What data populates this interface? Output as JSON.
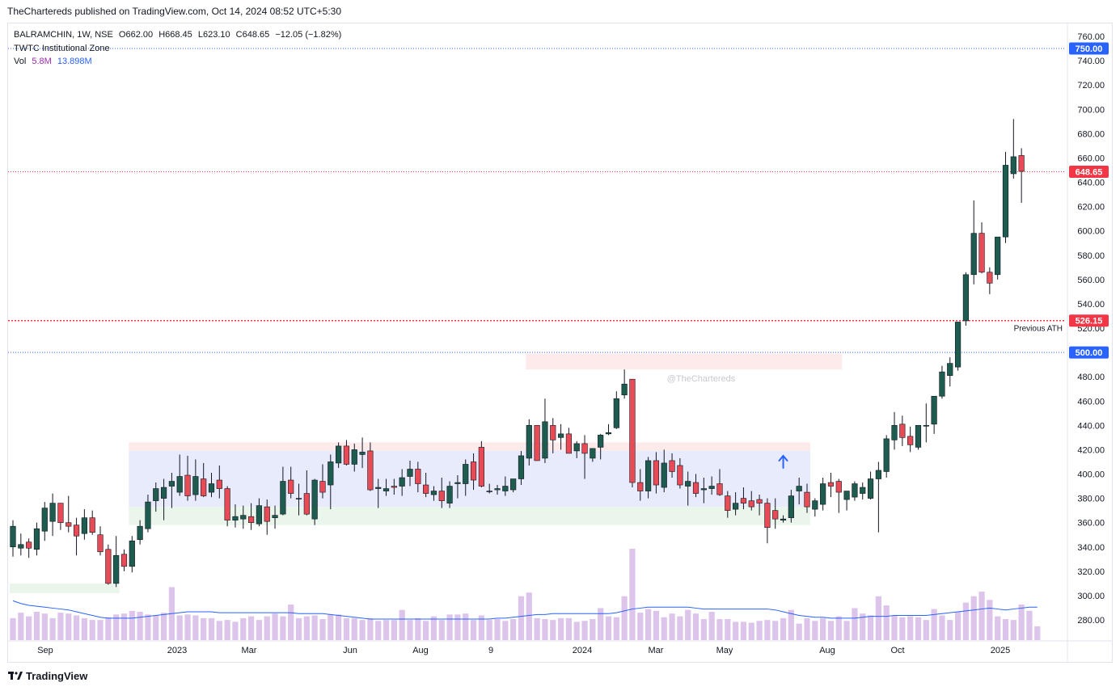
{
  "header": {
    "publisher_line": "TheChartereds published on TradingView.com, Oct 14, 2024 08:52 UTC+5:30"
  },
  "legend": {
    "symbol": "BALRAMCHIN, 1W, NSE",
    "open": "O662.00",
    "high": "H668.45",
    "low": "L623.10",
    "close": "C648.65",
    "change": "−12.05 (−1.82%)",
    "indicator": "TWTC Institutional Zone",
    "vol_label": "Vol",
    "vol_value": "5.8M",
    "vol_ma": "13.898M"
  },
  "footer": {
    "brand": "TradingView"
  },
  "colors": {
    "up": "#26a69a",
    "down": "#ef5350",
    "up_candle": "#1d5c4f",
    "down_candle": "#e84b56",
    "volume": "#dcc4ea",
    "vol_ma": "#2962ff",
    "zone_blue": "#e3e8fb",
    "zone_red": "#fde6e6",
    "zone_green": "#e6f4e8",
    "price_label_blue": "#2962ff",
    "price_label_red": "#f23645"
  },
  "chart_data": {
    "type": "candlestick",
    "y_axis": {
      "min": 270,
      "max": 765,
      "ticks": [
        280,
        300,
        320,
        340,
        360,
        380,
        400,
        420,
        440,
        460,
        480,
        500,
        520,
        540,
        560,
        580,
        600,
        620,
        640,
        660,
        680,
        700,
        720,
        740,
        760
      ]
    },
    "x_axis_labels": [
      "Sep",
      "2023",
      "Mar",
      "Jun",
      "Aug",
      "9",
      "2024",
      "Mar",
      "May",
      "Aug",
      "Oct",
      "2025"
    ],
    "price_labels": [
      {
        "value": 750.0,
        "text": "750.00",
        "color": "#2962ff",
        "line": "dotted-blue"
      },
      {
        "value": 648.65,
        "text": "648.65",
        "color": "#f23645",
        "line": "dotted-red"
      },
      {
        "value": 526.15,
        "text": "526.15",
        "color": "#f23645",
        "line": "dotted-red-thick",
        "annotation": "Previous ATH"
      },
      {
        "value": 500.0,
        "text": "500.00",
        "color": "#2962ff",
        "line": "dotted-blue"
      }
    ],
    "watermark": "@TheChartereds",
    "zones": [
      {
        "kind": "red",
        "from_index": 15,
        "to_index": 100,
        "low": 419,
        "high": 426
      },
      {
        "kind": "blue",
        "from_index": 15,
        "to_index": 100,
        "low": 373,
        "high": 419
      },
      {
        "kind": "green",
        "from_index": 15,
        "to_index": 100,
        "low": 358,
        "high": 373
      },
      {
        "kind": "red",
        "from_index": 65,
        "to_index": 104,
        "low": 486,
        "high": 499
      },
      {
        "kind": "green",
        "from_index": 0,
        "to_index": 13,
        "low": 302,
        "high": 310
      }
    ],
    "arrow": {
      "index": 97,
      "value": 411,
      "direction": "up",
      "color": "#2962ff"
    },
    "candles": [
      {
        "o": 340,
        "h": 362,
        "l": 332,
        "c": 357
      },
      {
        "o": 339,
        "h": 351,
        "l": 333,
        "c": 342
      },
      {
        "o": 344,
        "h": 347,
        "l": 331,
        "c": 339
      },
      {
        "o": 338,
        "h": 360,
        "l": 333,
        "c": 355
      },
      {
        "o": 353,
        "h": 377,
        "l": 345,
        "c": 372
      },
      {
        "o": 361,
        "h": 384,
        "l": 349,
        "c": 376
      },
      {
        "o": 376,
        "h": 376,
        "l": 354,
        "c": 360
      },
      {
        "o": 360,
        "h": 382,
        "l": 352,
        "c": 357
      },
      {
        "o": 358,
        "h": 364,
        "l": 333,
        "c": 349
      },
      {
        "o": 351,
        "h": 371,
        "l": 346,
        "c": 364
      },
      {
        "o": 364,
        "h": 370,
        "l": 350,
        "c": 352
      },
      {
        "o": 350,
        "h": 357,
        "l": 333,
        "c": 336
      },
      {
        "o": 338,
        "h": 342,
        "l": 309,
        "c": 310
      },
      {
        "o": 310,
        "h": 349,
        "l": 307,
        "c": 333
      },
      {
        "o": 334,
        "h": 338,
        "l": 320,
        "c": 324
      },
      {
        "o": 324,
        "h": 349,
        "l": 319,
        "c": 345
      },
      {
        "o": 346,
        "h": 362,
        "l": 342,
        "c": 357
      },
      {
        "o": 355,
        "h": 383,
        "l": 352,
        "c": 377
      },
      {
        "o": 378,
        "h": 393,
        "l": 369,
        "c": 388
      },
      {
        "o": 380,
        "h": 396,
        "l": 362,
        "c": 389
      },
      {
        "o": 390,
        "h": 401,
        "l": 372,
        "c": 394
      },
      {
        "o": 385,
        "h": 416,
        "l": 382,
        "c": 398
      },
      {
        "o": 399,
        "h": 415,
        "l": 378,
        "c": 382
      },
      {
        "o": 383,
        "h": 412,
        "l": 378,
        "c": 398
      },
      {
        "o": 396,
        "h": 409,
        "l": 381,
        "c": 382
      },
      {
        "o": 385,
        "h": 401,
        "l": 381,
        "c": 392
      },
      {
        "o": 395,
        "h": 407,
        "l": 380,
        "c": 388
      },
      {
        "o": 388,
        "h": 390,
        "l": 357,
        "c": 362
      },
      {
        "o": 362,
        "h": 375,
        "l": 356,
        "c": 365
      },
      {
        "o": 363,
        "h": 374,
        "l": 355,
        "c": 366
      },
      {
        "o": 365,
        "h": 376,
        "l": 354,
        "c": 360
      },
      {
        "o": 359,
        "h": 380,
        "l": 357,
        "c": 374
      },
      {
        "o": 373,
        "h": 379,
        "l": 350,
        "c": 361
      },
      {
        "o": 364,
        "h": 374,
        "l": 355,
        "c": 366
      },
      {
        "o": 367,
        "h": 406,
        "l": 366,
        "c": 394
      },
      {
        "o": 395,
        "h": 406,
        "l": 380,
        "c": 384
      },
      {
        "o": 380,
        "h": 392,
        "l": 366,
        "c": 380
      },
      {
        "o": 384,
        "h": 403,
        "l": 366,
        "c": 367
      },
      {
        "o": 363,
        "h": 396,
        "l": 358,
        "c": 395
      },
      {
        "o": 394,
        "h": 408,
        "l": 380,
        "c": 385
      },
      {
        "o": 391,
        "h": 416,
        "l": 371,
        "c": 410
      },
      {
        "o": 409,
        "h": 426,
        "l": 405,
        "c": 423
      },
      {
        "o": 423,
        "h": 428,
        "l": 407,
        "c": 408
      },
      {
        "o": 408,
        "h": 425,
        "l": 402,
        "c": 420
      },
      {
        "o": 416,
        "h": 430,
        "l": 405,
        "c": 418
      },
      {
        "o": 419,
        "h": 426,
        "l": 386,
        "c": 387
      },
      {
        "o": 388,
        "h": 396,
        "l": 372,
        "c": 389
      },
      {
        "o": 386,
        "h": 396,
        "l": 382,
        "c": 388
      },
      {
        "o": 390,
        "h": 396,
        "l": 383,
        "c": 389
      },
      {
        "o": 390,
        "h": 404,
        "l": 382,
        "c": 397
      },
      {
        "o": 398,
        "h": 411,
        "l": 390,
        "c": 404
      },
      {
        "o": 404,
        "h": 410,
        "l": 385,
        "c": 392
      },
      {
        "o": 391,
        "h": 401,
        "l": 381,
        "c": 384
      },
      {
        "o": 383,
        "h": 390,
        "l": 378,
        "c": 386
      },
      {
        "o": 386,
        "h": 397,
        "l": 372,
        "c": 378
      },
      {
        "o": 376,
        "h": 394,
        "l": 372,
        "c": 390
      },
      {
        "o": 392,
        "h": 399,
        "l": 380,
        "c": 393
      },
      {
        "o": 392,
        "h": 412,
        "l": 382,
        "c": 408
      },
      {
        "o": 410,
        "h": 417,
        "l": 387,
        "c": 395
      },
      {
        "o": 422,
        "h": 427,
        "l": 389,
        "c": 390
      },
      {
        "o": 386,
        "h": 392,
        "l": 384,
        "c": 386
      },
      {
        "o": 387,
        "h": 391,
        "l": 383,
        "c": 388
      },
      {
        "o": 386,
        "h": 398,
        "l": 382,
        "c": 390
      },
      {
        "o": 387,
        "h": 396,
        "l": 385,
        "c": 396
      },
      {
        "o": 396,
        "h": 419,
        "l": 391,
        "c": 415
      },
      {
        "o": 413,
        "h": 445,
        "l": 407,
        "c": 440
      },
      {
        "o": 440,
        "h": 440,
        "l": 413,
        "c": 411
      },
      {
        "o": 413,
        "h": 462,
        "l": 409,
        "c": 443
      },
      {
        "o": 440,
        "h": 446,
        "l": 417,
        "c": 428
      },
      {
        "o": 430,
        "h": 441,
        "l": 420,
        "c": 433
      },
      {
        "o": 433,
        "h": 438,
        "l": 417,
        "c": 417
      },
      {
        "o": 419,
        "h": 427,
        "l": 413,
        "c": 425
      },
      {
        "o": 425,
        "h": 432,
        "l": 396,
        "c": 417
      },
      {
        "o": 413,
        "h": 420,
        "l": 410,
        "c": 421
      },
      {
        "o": 422,
        "h": 433,
        "l": 412,
        "c": 432
      },
      {
        "o": 433,
        "h": 441,
        "l": 432,
        "c": 434
      },
      {
        "o": 438,
        "h": 468,
        "l": 437,
        "c": 462
      },
      {
        "o": 465,
        "h": 486,
        "l": 462,
        "c": 474
      },
      {
        "o": 478,
        "h": 478,
        "l": 389,
        "c": 393
      },
      {
        "o": 393,
        "h": 404,
        "l": 378,
        "c": 386
      },
      {
        "o": 386,
        "h": 414,
        "l": 380,
        "c": 411
      },
      {
        "o": 411,
        "h": 418,
        "l": 384,
        "c": 391
      },
      {
        "o": 389,
        "h": 420,
        "l": 385,
        "c": 409
      },
      {
        "o": 411,
        "h": 417,
        "l": 397,
        "c": 402
      },
      {
        "o": 407,
        "h": 413,
        "l": 388,
        "c": 391
      },
      {
        "o": 390,
        "h": 402,
        "l": 374,
        "c": 394
      },
      {
        "o": 393,
        "h": 400,
        "l": 381,
        "c": 384
      },
      {
        "o": 387,
        "h": 397,
        "l": 376,
        "c": 388
      },
      {
        "o": 388,
        "h": 398,
        "l": 383,
        "c": 390
      },
      {
        "o": 392,
        "h": 404,
        "l": 382,
        "c": 383
      },
      {
        "o": 382,
        "h": 386,
        "l": 364,
        "c": 370
      },
      {
        "o": 371,
        "h": 385,
        "l": 366,
        "c": 376
      },
      {
        "o": 380,
        "h": 389,
        "l": 371,
        "c": 376
      },
      {
        "o": 378,
        "h": 386,
        "l": 370,
        "c": 373
      },
      {
        "o": 379,
        "h": 383,
        "l": 366,
        "c": 376
      },
      {
        "o": 376,
        "h": 380,
        "l": 343,
        "c": 356
      },
      {
        "o": 370,
        "h": 380,
        "l": 355,
        "c": 363
      },
      {
        "o": 362,
        "h": 366,
        "l": 360,
        "c": 363
      },
      {
        "o": 364,
        "h": 387,
        "l": 360,
        "c": 382
      },
      {
        "o": 386,
        "h": 397,
        "l": 375,
        "c": 390
      },
      {
        "o": 385,
        "h": 392,
        "l": 368,
        "c": 373
      },
      {
        "o": 371,
        "h": 380,
        "l": 365,
        "c": 378
      },
      {
        "o": 375,
        "h": 397,
        "l": 370,
        "c": 392
      },
      {
        "o": 393,
        "h": 401,
        "l": 381,
        "c": 390
      },
      {
        "o": 394,
        "h": 396,
        "l": 368,
        "c": 385
      },
      {
        "o": 379,
        "h": 386,
        "l": 370,
        "c": 386
      },
      {
        "o": 381,
        "h": 394,
        "l": 378,
        "c": 392
      },
      {
        "o": 384,
        "h": 393,
        "l": 379,
        "c": 389
      },
      {
        "o": 380,
        "h": 402,
        "l": 379,
        "c": 396
      },
      {
        "o": 396,
        "h": 410,
        "l": 352,
        "c": 403
      },
      {
        "o": 402,
        "h": 432,
        "l": 397,
        "c": 429
      },
      {
        "o": 428,
        "h": 451,
        "l": 420,
        "c": 440
      },
      {
        "o": 441,
        "h": 448,
        "l": 423,
        "c": 430
      },
      {
        "o": 431,
        "h": 439,
        "l": 418,
        "c": 424
      },
      {
        "o": 422,
        "h": 436,
        "l": 420,
        "c": 440
      },
      {
        "o": 440,
        "h": 458,
        "l": 426,
        "c": 440
      },
      {
        "o": 441,
        "h": 464,
        "l": 433,
        "c": 464
      },
      {
        "o": 464,
        "h": 489,
        "l": 462,
        "c": 484
      },
      {
        "o": 481,
        "h": 496,
        "l": 472,
        "c": 491
      },
      {
        "o": 488,
        "h": 522,
        "l": 485,
        "c": 525
      },
      {
        "o": 526,
        "h": 566,
        "l": 522,
        "c": 564
      },
      {
        "o": 564,
        "h": 625,
        "l": 556,
        "c": 598
      },
      {
        "o": 598,
        "h": 607,
        "l": 565,
        "c": 566
      },
      {
        "o": 566,
        "h": 570,
        "l": 548,
        "c": 557
      },
      {
        "o": 564,
        "h": 594,
        "l": 560,
        "c": 595
      },
      {
        "o": 595,
        "h": 665,
        "l": 590,
        "c": 654
      },
      {
        "o": 647,
        "h": 692,
        "l": 643,
        "c": 661
      },
      {
        "o": 662,
        "h": 668,
        "l": 623,
        "c": 649
      }
    ],
    "volume": {
      "axis_max": 115,
      "bars": [
        24,
        30,
        26,
        31,
        29,
        24,
        30,
        29,
        27,
        24,
        22,
        22,
        25,
        28,
        29,
        32,
        31,
        28,
        27,
        30,
        58,
        27,
        28,
        27,
        24,
        24,
        21,
        22,
        20,
        24,
        26,
        22,
        26,
        29,
        26,
        39,
        24,
        26,
        27,
        23,
        28,
        28,
        24,
        24,
        22,
        24,
        21,
        22,
        22,
        33,
        22,
        24,
        21,
        26,
        22,
        28,
        28,
        29,
        22,
        27,
        22,
        23,
        21,
        23,
        48,
        52,
        24,
        23,
        22,
        24,
        24,
        20,
        21,
        23,
        35,
        26,
        25,
        48,
        100,
        30,
        34,
        32,
        25,
        29,
        26,
        33,
        29,
        23,
        31,
        23,
        23,
        20,
        20,
        19,
        21,
        22,
        21,
        24,
        33,
        18,
        24,
        21,
        24,
        21,
        26,
        21,
        35,
        29,
        27,
        48,
        38,
        27,
        25,
        26,
        25,
        22,
        34,
        27,
        22,
        31,
        41,
        48,
        53,
        44,
        26,
        23,
        22,
        39,
        32,
        15
      ]
    },
    "vol_ma": [
      43,
      40,
      38,
      37,
      36,
      35,
      34,
      33,
      31,
      29,
      27,
      25,
      24,
      24,
      24,
      24,
      25,
      26,
      27,
      28,
      29,
      30,
      31,
      31,
      31,
      31,
      30,
      30,
      30,
      30,
      30,
      30,
      30,
      30,
      30,
      30,
      29,
      29,
      29,
      29,
      28,
      27,
      26,
      25,
      24,
      23,
      23,
      23,
      23,
      23,
      23,
      23,
      23,
      23,
      23,
      23,
      23,
      23,
      23,
      23,
      23,
      24,
      24,
      25,
      26,
      27,
      28,
      28,
      29,
      29,
      29,
      29,
      29,
      29,
      29,
      29,
      30,
      32,
      34,
      35,
      36,
      36,
      36,
      36,
      36,
      36,
      35,
      34,
      34,
      34,
      34,
      34,
      34,
      34,
      34,
      34,
      33,
      31,
      29,
      27,
      26,
      25,
      25,
      24,
      24,
      24,
      24,
      25,
      26,
      26,
      26,
      27,
      27,
      27,
      27,
      27,
      28,
      29,
      30,
      31,
      32,
      33,
      34,
      35,
      34,
      33,
      34,
      35,
      36,
      36
    ]
  }
}
